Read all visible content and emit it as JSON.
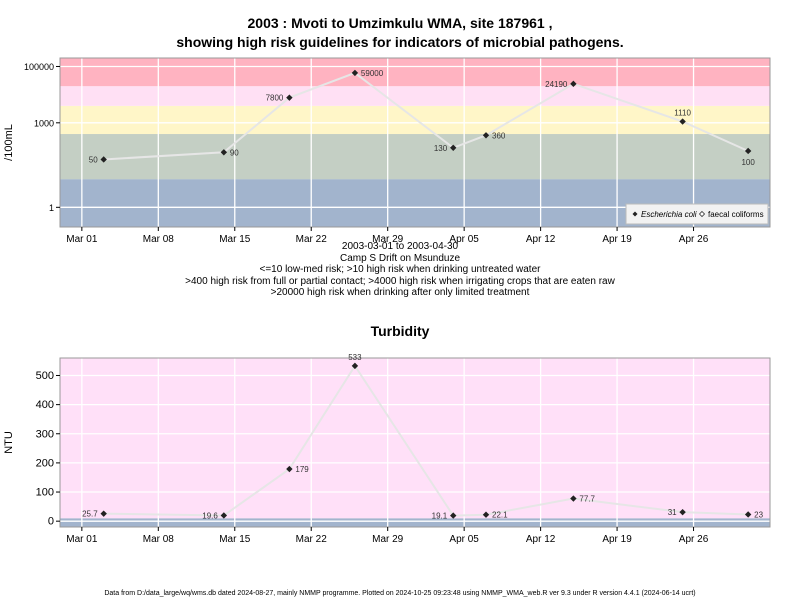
{
  "chart_data": [
    {
      "type": "line",
      "title": "2003 : Mvoti to Umzimkulu WMA, site 187961 ,",
      "subtitle": "showing high risk guidelines for indicators of microbial pathogens.",
      "ylabel": "/100mL",
      "y_scale": "log",
      "ylim": [
        0.2,
        200000
      ],
      "y_ticks": [
        1,
        1000,
        100000
      ],
      "y_tick_labels": [
        "1",
        "1000",
        "100000"
      ],
      "x_ticks": [
        "2003-03-01",
        "2003-03-08",
        "2003-03-15",
        "2003-03-22",
        "2003-03-29",
        "2003-04-05",
        "2003-04-12",
        "2003-04-19",
        "2003-04-26"
      ],
      "x_tick_labels": [
        "Mar 01",
        "Mar 08",
        "Mar 15",
        "Mar 22",
        "Mar 29",
        "Apr 05",
        "Apr 12",
        "Apr 19",
        "Apr 26"
      ],
      "xlim": [
        "2003-02-27",
        "2003-05-03"
      ],
      "grid": true,
      "bands": [
        {
          "from": 0.2,
          "to": 10,
          "color": "#a2b4cd"
        },
        {
          "from": 10,
          "to": 400,
          "color": "#c4cfc4"
        },
        {
          "from": 400,
          "to": 4000,
          "color": "#fff6c8"
        },
        {
          "from": 4000,
          "to": 20000,
          "color": "#ffe0f4"
        },
        {
          "from": 20000,
          "to": 200000,
          "color": "#ffb3c1"
        }
      ],
      "legend": {
        "position": "bottom-right",
        "entries": [
          "Escherichia coli",
          "faecal coliforms"
        ]
      },
      "series": [
        {
          "name": "Escherichia coli",
          "x": [
            "2003-03-03",
            "2003-03-14",
            "2003-03-20",
            "2003-03-26",
            "2003-04-04",
            "2003-04-07",
            "2003-04-15",
            "2003-04-25",
            "2003-05-01"
          ],
          "values": [
            50,
            90,
            7800,
            59000,
            130,
            360,
            24190,
            1110,
            100
          ],
          "labels": [
            "50",
            "90",
            "7800",
            "59000",
            "130",
            "360",
            "24190",
            "1110",
            "100"
          ]
        }
      ]
    },
    {
      "type": "line",
      "title": "Turbidity",
      "ylabel": "NTU",
      "ylim": [
        -20,
        560
      ],
      "y_ticks": [
        0,
        100,
        200,
        300,
        400,
        500
      ],
      "y_tick_labels": [
        "0",
        "100",
        "200",
        "300",
        "400",
        "500"
      ],
      "x_ticks": [
        "2003-03-01",
        "2003-03-08",
        "2003-03-15",
        "2003-03-22",
        "2003-03-29",
        "2003-04-05",
        "2003-04-12",
        "2003-04-19",
        "2003-04-26"
      ],
      "x_tick_labels": [
        "Mar 01",
        "Mar 08",
        "Mar 15",
        "Mar 22",
        "Mar 29",
        "Apr 05",
        "Apr 12",
        "Apr 19",
        "Apr 26"
      ],
      "xlim": [
        "2003-02-27",
        "2003-05-03"
      ],
      "grid": true,
      "bands": [
        {
          "from": -20,
          "to": 10,
          "color": "#a2b4cd"
        },
        {
          "from": 10,
          "to": 560,
          "color": "#ffe0f8"
        }
      ],
      "series": [
        {
          "x": [
            "2003-03-03",
            "2003-03-14",
            "2003-03-20",
            "2003-03-26",
            "2003-04-04",
            "2003-04-07",
            "2003-04-15",
            "2003-04-25",
            "2003-05-01"
          ],
          "values": [
            25.7,
            19.6,
            179,
            533,
            19.1,
            22.1,
            77.7,
            31,
            23
          ],
          "labels": [
            "25.7",
            "19.6",
            "179",
            "533",
            "19.1",
            "22.1",
            "77.7",
            "31",
            "23"
          ]
        }
      ]
    }
  ],
  "notes": {
    "date_range": "2003-03-01 to 2003-04-30",
    "site": "Camp S Drift on Msunduze",
    "line1": "<=10 low-med risk; >10 high risk when drinking untreated water",
    "line2": ">400 high risk from full or partial contact; >4000 high risk when irrigating crops that are eaten raw",
    "line3": ">20000 high risk when drinking after only limited treatment"
  },
  "footer": "Data from D:/data_large/wq/wms.db dated 2024-08-27, mainly NMMP programme. Plotted on 2024-10-25 09:23:48 using NMMP_WMA_web.R ver 9.3 under R version 4.4.1 (2024-06-14 ucrt)",
  "colors": {
    "point": "#222222",
    "line": "#e6e6e6",
    "grid": "#ffffff",
    "frame": "#999999"
  }
}
